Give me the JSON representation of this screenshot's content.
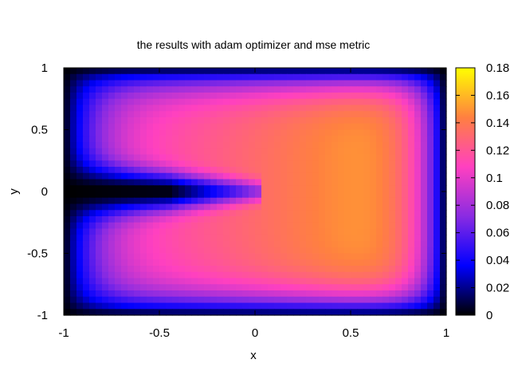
{
  "chart_data": {
    "type": "heatmap",
    "title": "the results with adam optimizer and mse metric",
    "xlabel": "x",
    "ylabel": "y",
    "xlim": [
      -1,
      1
    ],
    "ylim": [
      -1,
      1
    ],
    "x_ticks": [
      -1,
      -0.5,
      0,
      0.5,
      1
    ],
    "x_tick_labels": [
      "-1",
      "-0.5",
      "0",
      "0.5",
      "1"
    ],
    "y_ticks": [
      -1,
      -0.5,
      0,
      0.5,
      1
    ],
    "y_tick_labels": [
      "-1",
      "-0.5",
      "0",
      "0.5",
      "1"
    ],
    "colorbar": {
      "range": [
        0,
        0.18
      ],
      "ticks": [
        0,
        0.02,
        0.04,
        0.06,
        0.08,
        0.1,
        0.12,
        0.14,
        0.16,
        0.18
      ],
      "tick_labels": [
        "0",
        "0.02",
        "0.04",
        "0.06",
        "0.08",
        "0.1",
        "0.12",
        "0.14",
        "0.16",
        "0.18"
      ],
      "palette": [
        "#000000",
        "#0000ff",
        "#8a2be2",
        "#ff40c0",
        "#ff8040",
        "#ffff00"
      ]
    },
    "features": {
      "peak_value": 0.17,
      "peak_location": [
        0.4,
        0.0
      ],
      "low_band": "near y = 0 for x < 0, value approximately 0",
      "edge_value": 0.0
    }
  }
}
